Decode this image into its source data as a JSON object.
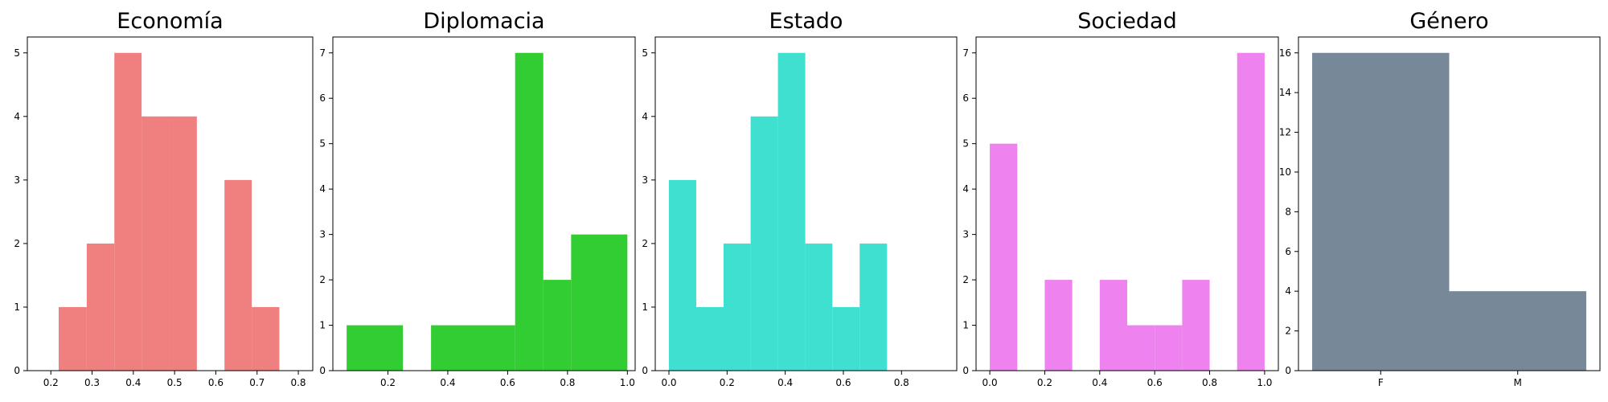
{
  "chart_data": [
    {
      "type": "bar",
      "title": "Economía",
      "color": "#f08080",
      "xlim": [
        0.143,
        0.835
      ],
      "ylim": [
        0,
        5.25
      ],
      "xticks": [
        "0.2",
        "0.3",
        "0.4",
        "0.5",
        "0.6",
        "0.7",
        "0.8"
      ],
      "yticks": [
        "0",
        "1",
        "2",
        "3",
        "4",
        "5"
      ],
      "bins": [
        {
          "x0": 0.219,
          "x1": 0.287,
          "value": 1
        },
        {
          "x0": 0.287,
          "x1": 0.354,
          "value": 2
        },
        {
          "x0": 0.354,
          "x1": 0.42,
          "value": 5
        },
        {
          "x0": 0.42,
          "x1": 0.487,
          "value": 4
        },
        {
          "x0": 0.487,
          "x1": 0.554,
          "value": 4
        },
        {
          "x0": 0.554,
          "x1": 0.621,
          "value": 0
        },
        {
          "x0": 0.621,
          "x1": 0.687,
          "value": 3
        },
        {
          "x0": 0.687,
          "x1": 0.754,
          "value": 1
        }
      ]
    },
    {
      "type": "bar",
      "title": "Diplomacia",
      "color": "#32cd32",
      "xlim": [
        0.016,
        1.026
      ],
      "ylim": [
        0,
        7.35
      ],
      "xticks": [
        "0.2",
        "0.4",
        "0.6",
        "0.8",
        "1.0"
      ],
      "yticks": [
        "0",
        "1",
        "2",
        "3",
        "4",
        "5",
        "6",
        "7"
      ],
      "bins": [
        {
          "x0": 0.062,
          "x1": 0.25,
          "value": 1
        },
        {
          "x0": 0.25,
          "x1": 0.344,
          "value": 0
        },
        {
          "x0": 0.344,
          "x1": 0.625,
          "value": 1
        },
        {
          "x0": 0.625,
          "x1": 0.719,
          "value": 7
        },
        {
          "x0": 0.719,
          "x1": 0.812,
          "value": 2
        },
        {
          "x0": 0.812,
          "x1": 1.0,
          "value": 3
        }
      ]
    },
    {
      "type": "bar",
      "title": "Estado",
      "color": "#40e0d0",
      "xlim": [
        -0.047,
        0.99
      ],
      "ylim": [
        0,
        5.25
      ],
      "xticks": [
        "0.0",
        "0.2",
        "0.4",
        "0.6",
        "0.8"
      ],
      "yticks": [
        "0",
        "1",
        "2",
        "3",
        "4",
        "5"
      ],
      "bins": [
        {
          "x0": 0.0,
          "x1": 0.094,
          "value": 3
        },
        {
          "x0": 0.094,
          "x1": 0.188,
          "value": 1
        },
        {
          "x0": 0.188,
          "x1": 0.281,
          "value": 2
        },
        {
          "x0": 0.281,
          "x1": 0.375,
          "value": 4
        },
        {
          "x0": 0.375,
          "x1": 0.469,
          "value": 5
        },
        {
          "x0": 0.469,
          "x1": 0.562,
          "value": 2
        },
        {
          "x0": 0.562,
          "x1": 0.656,
          "value": 1
        },
        {
          "x0": 0.656,
          "x1": 0.75,
          "value": 2
        }
      ]
    },
    {
      "type": "bar",
      "title": "Sociedad",
      "color": "#ee82ee",
      "xlim": [
        -0.05,
        1.05
      ],
      "ylim": [
        0,
        7.35
      ],
      "xticks": [
        "0.0",
        "0.2",
        "0.4",
        "0.6",
        "0.8",
        "1.0"
      ],
      "yticks": [
        "0",
        "1",
        "2",
        "3",
        "4",
        "5",
        "6",
        "7"
      ],
      "bins": [
        {
          "x0": 0.0,
          "x1": 0.1,
          "value": 5
        },
        {
          "x0": 0.1,
          "x1": 0.2,
          "value": 0
        },
        {
          "x0": 0.2,
          "x1": 0.3,
          "value": 2
        },
        {
          "x0": 0.3,
          "x1": 0.4,
          "value": 0
        },
        {
          "x0": 0.4,
          "x1": 0.5,
          "value": 2
        },
        {
          "x0": 0.5,
          "x1": 0.6,
          "value": 1
        },
        {
          "x0": 0.6,
          "x1": 0.7,
          "value": 1
        },
        {
          "x0": 0.7,
          "x1": 0.8,
          "value": 2
        },
        {
          "x0": 0.8,
          "x1": 0.9,
          "value": 0
        },
        {
          "x0": 0.9,
          "x1": 1.0,
          "value": 7
        }
      ]
    },
    {
      "type": "bar",
      "title": "Género",
      "color": "#778899",
      "xlim": [
        -0.05,
        1.05
      ],
      "ylim": [
        0,
        16.8
      ],
      "xticks": [
        "F",
        "M"
      ],
      "xtickpos": [
        0.25,
        0.75
      ],
      "yticks": [
        "0",
        "2",
        "4",
        "6",
        "8",
        "10",
        "12",
        "14",
        "16"
      ],
      "bins": [
        {
          "x0": 0.0,
          "x1": 0.5,
          "value": 16
        },
        {
          "x0": 0.5,
          "x1": 1.0,
          "value": 4
        }
      ]
    }
  ]
}
